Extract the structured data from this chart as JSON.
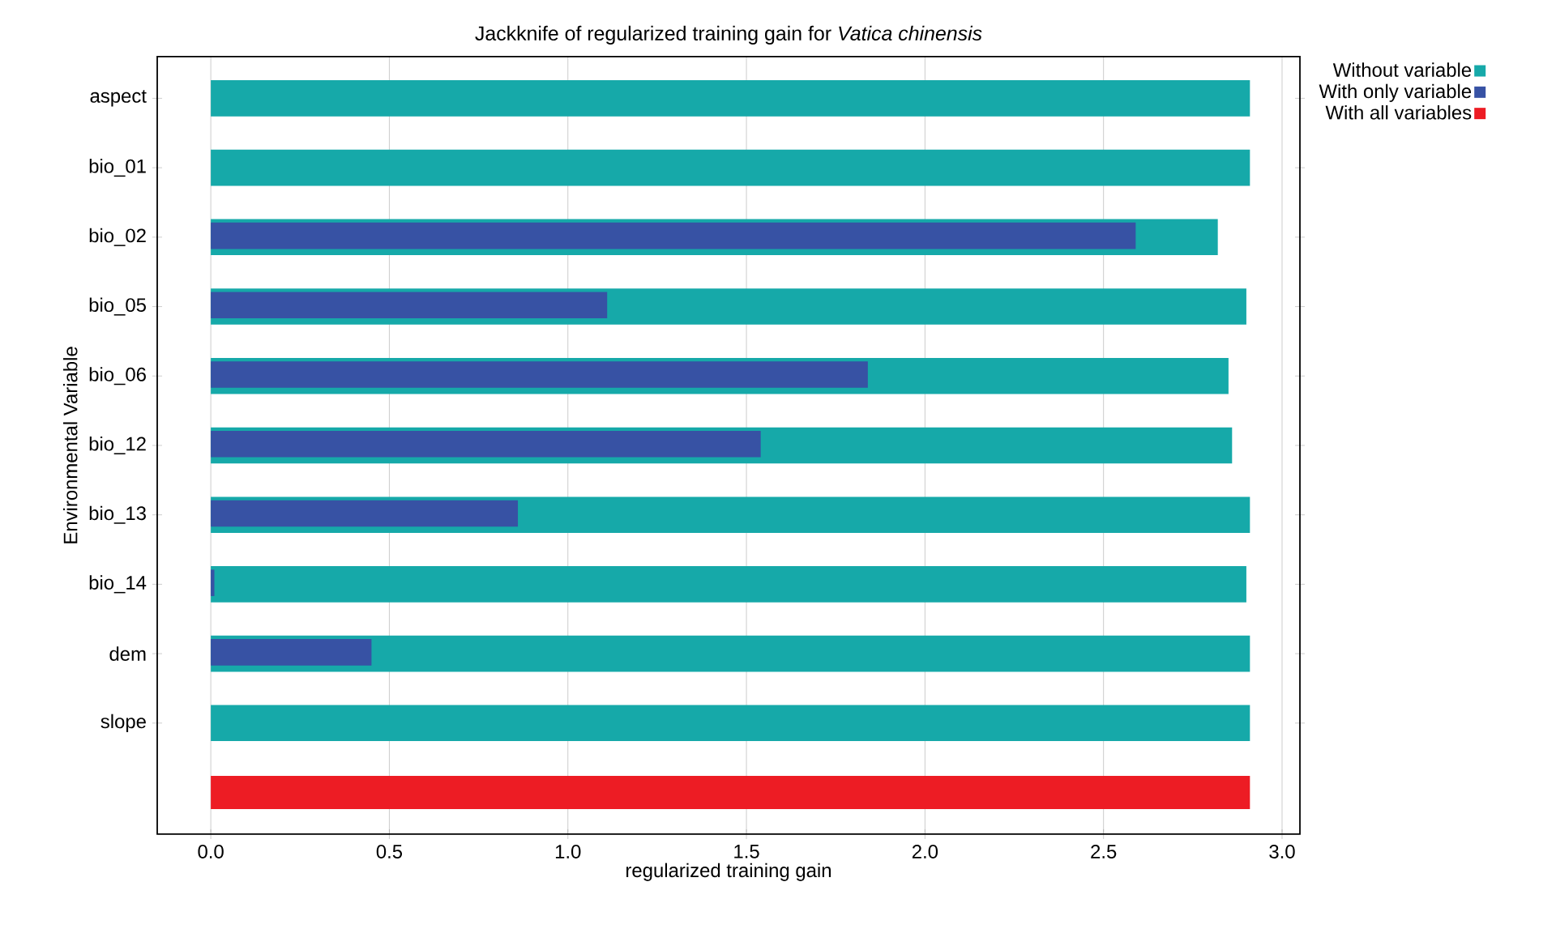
{
  "chart_data": {
    "type": "bar",
    "orientation": "horizontal",
    "title": "Jackknife of regularized training gain for *Vatica chinensis*",
    "xlabel": "regularized training gain",
    "ylabel": "Environmental Variable",
    "categories": [
      "aspect",
      "bio_01",
      "bio_02",
      "bio_05",
      "bio_06",
      "bio_12",
      "bio_13",
      "bio_14",
      "dem",
      "slope",
      null
    ],
    "series": [
      {
        "name": "Without variable",
        "color": "#16a9a9",
        "values": [
          2.91,
          2.91,
          2.82,
          2.9,
          2.85,
          2.86,
          2.91,
          2.9,
          2.91,
          2.91,
          null
        ]
      },
      {
        "name": "With only variable",
        "color": "#3752a4",
        "values": [
          0,
          0,
          2.59,
          1.11,
          1.84,
          1.54,
          0.86,
          0.01,
          0.45,
          0,
          null
        ]
      },
      {
        "name": "With all variables",
        "color": "#ed1c24",
        "values": [
          null,
          null,
          null,
          null,
          null,
          null,
          null,
          null,
          null,
          null,
          2.91
        ]
      }
    ],
    "xlim": [
      -0.15,
      3.05
    ],
    "xticks": [
      {
        "value": 0,
        "label": "0.0"
      },
      0.5,
      {
        "value": 1,
        "label": "1.0"
      },
      1.5,
      {
        "value": 2,
        "label": "2.0"
      },
      2.5,
      {
        "value": 3,
        "label": "3.0"
      }
    ],
    "grid": "x",
    "legend": "top right"
  }
}
